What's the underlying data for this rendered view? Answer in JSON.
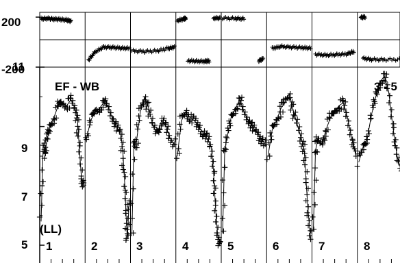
{
  "chart_data": [
    {
      "type": "scatter",
      "name_hint": "phase-panels",
      "y_ticks": [
        "200",
        "-200"
      ],
      "ylim": [
        -200,
        200
      ],
      "panels": [
        {
          "segments": [
            [
              [
                0.0,
                170
              ],
              [
                0.15,
                172
              ],
              [
                0.3,
                168
              ],
              [
                0.45,
                165
              ],
              [
                0.6,
                160
              ],
              [
                0.7,
                150
              ]
            ]
          ]
        },
        {
          "segments": [
            [
              [
                0.05,
                -165
              ],
              [
                0.2,
                -100
              ],
              [
                0.4,
                -60
              ],
              [
                0.6,
                -62
              ],
              [
                0.8,
                -68
              ],
              [
                1.0,
                -70
              ]
            ]
          ]
        },
        {
          "segments": [
            [
              [
                0.0,
                -90
              ],
              [
                0.3,
                -95
              ],
              [
                0.6,
                -90
              ],
              [
                0.85,
                -70
              ],
              [
                1.0,
                -60
              ]
            ]
          ]
        },
        {
          "segments": [
            [
              [
                0.0,
                155
              ],
              [
                0.15,
                168
              ],
              [
                0.2,
                175
              ]
            ],
            [
              [
                0.25,
                -170
              ],
              [
                0.45,
                -175
              ],
              [
                0.65,
                -175
              ],
              [
                0.75,
                -172
              ]
            ],
            [
              [
                0.85,
                175
              ],
              [
                1.0,
                175
              ]
            ]
          ]
        },
        {
          "segments": [
            [
              [
                0.0,
                175
              ],
              [
                0.3,
                172
              ],
              [
                0.5,
                170
              ]
            ],
            [
              [
                0.85,
                -170
              ],
              [
                0.95,
                -155
              ]
            ]
          ]
        },
        {
          "segments": [
            [
              [
                0.1,
                -70
              ],
              [
                0.3,
                -55
              ],
              [
                0.55,
                -60
              ],
              [
                0.8,
                -65
              ],
              [
                1.0,
                -68
              ]
            ]
          ]
        },
        {
          "segments": [
            [
              [
                0.05,
                -120
              ],
              [
                0.3,
                -125
              ],
              [
                0.55,
                -122
              ],
              [
                0.8,
                -115
              ],
              [
                0.95,
                -95
              ]
            ]
          ]
        },
        {
          "segments": [
            [
              [
                0.05,
                180
              ],
              [
                0.15,
                185
              ]
            ],
            [
              [
                0.1,
                -150
              ],
              [
                0.3,
                -160
              ],
              [
                0.6,
                -162
              ],
              [
                1.0,
                -160
              ]
            ]
          ]
        }
      ]
    },
    {
      "type": "line",
      "name_hint": "amplitude-panels",
      "y_ticks": [
        "11",
        "9",
        "7",
        "5"
      ],
      "ylim": [
        5,
        11
      ],
      "panel_labels": [
        "1",
        "2",
        "3",
        "4",
        "5",
        "6",
        "7",
        "8"
      ],
      "panels": [
        {
          "x": [
            0,
            0.05,
            0.1,
            0.15,
            0.2,
            0.3,
            0.4,
            0.5,
            0.6,
            0.7,
            0.8,
            0.85,
            0.9,
            0.95,
            1.0
          ],
          "y": [
            5.8,
            8.4,
            8.2,
            8.6,
            9.0,
            9.3,
            9.7,
            9.8,
            9.7,
            9.9,
            9.6,
            9.3,
            8.2,
            7.2,
            7.1
          ]
        },
        {
          "x": [
            0,
            0.1,
            0.2,
            0.3,
            0.4,
            0.5,
            0.6,
            0.7,
            0.8,
            0.85,
            0.9,
            0.93,
            0.96,
            1.0
          ],
          "y": [
            8.6,
            9.2,
            9.5,
            9.6,
            9.8,
            9.7,
            9.3,
            9.0,
            8.8,
            8.2,
            7.0,
            6.0,
            5.2,
            6.5
          ]
        },
        {
          "x": [
            0,
            0.05,
            0.1,
            0.2,
            0.3,
            0.4,
            0.5,
            0.6,
            0.7,
            0.8,
            0.9,
            1.0
          ],
          "y": [
            5.3,
            8.5,
            8.4,
            9.5,
            10.0,
            9.6,
            9.0,
            8.8,
            9.2,
            9.0,
            8.6,
            8.4
          ]
        },
        {
          "x": [
            0,
            0.1,
            0.2,
            0.3,
            0.4,
            0.5,
            0.6,
            0.7,
            0.8,
            0.85,
            0.9,
            0.95,
            1.0
          ],
          "y": [
            8.0,
            9.2,
            9.5,
            9.3,
            9.2,
            9.0,
            8.8,
            8.6,
            8.3,
            7.5,
            6.2,
            5.3,
            5.1
          ]
        },
        {
          "x": [
            0,
            0.05,
            0.1,
            0.2,
            0.3,
            0.4,
            0.5,
            0.6,
            0.7,
            0.8,
            0.9,
            1.0
          ],
          "y": [
            5.4,
            8.2,
            8.6,
            9.3,
            9.6,
            9.9,
            9.5,
            9.2,
            9.0,
            8.8,
            8.6,
            8.4
          ]
        },
        {
          "x": [
            0,
            0.1,
            0.2,
            0.3,
            0.4,
            0.5,
            0.6,
            0.7,
            0.8,
            0.85,
            0.9,
            0.95,
            1.0
          ],
          "y": [
            8.0,
            8.9,
            9.2,
            9.6,
            9.8,
            10.1,
            9.5,
            9.0,
            8.5,
            8.2,
            7.0,
            6.0,
            5.2
          ]
        },
        {
          "x": [
            0,
            0.05,
            0.1,
            0.2,
            0.3,
            0.4,
            0.5,
            0.6,
            0.7,
            0.8,
            0.9,
            1.0
          ],
          "y": [
            5.5,
            8.2,
            8.5,
            8.4,
            8.9,
            9.3,
            9.5,
            9.7,
            9.8,
            9.3,
            8.6,
            8.0
          ]
        },
        {
          "x": [
            0,
            0.1,
            0.2,
            0.3,
            0.4,
            0.5,
            0.6,
            0.7,
            0.8,
            0.9,
            1.0
          ],
          "y": [
            7.8,
            8.3,
            8.6,
            9.4,
            10.0,
            10.5,
            10.7,
            10.2,
            9.0,
            8.0,
            7.5
          ]
        }
      ],
      "annotations": [
        "EF - WB",
        "3 - 5",
        "(LL)"
      ]
    }
  ]
}
